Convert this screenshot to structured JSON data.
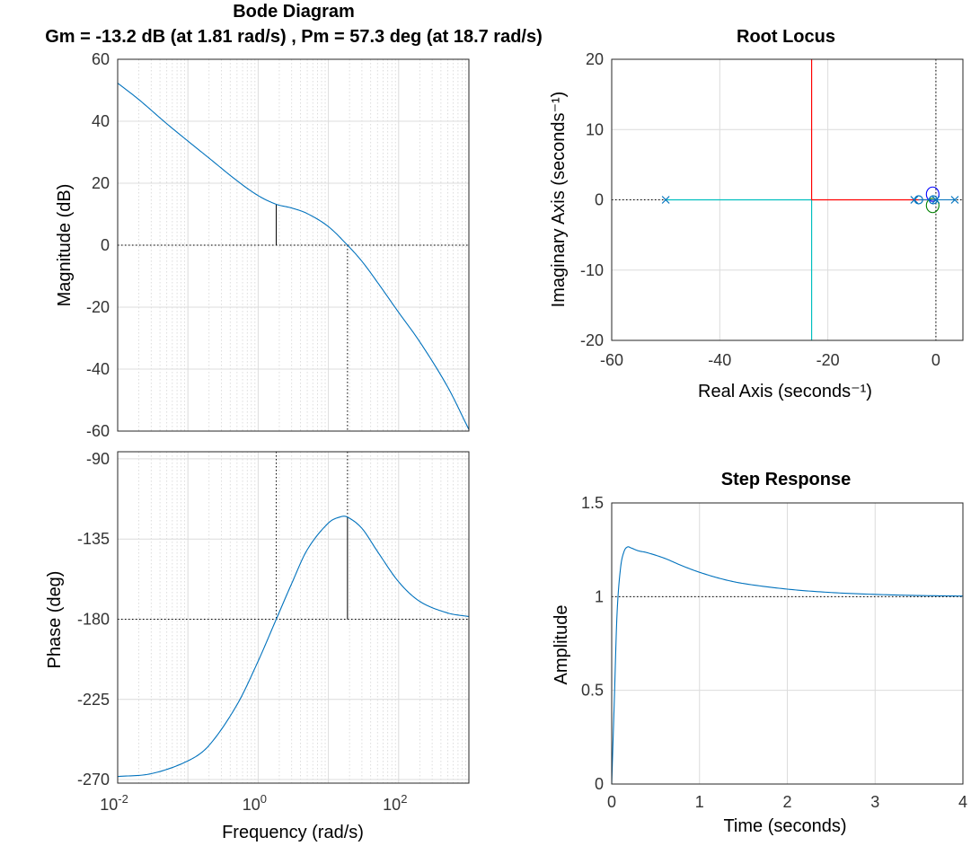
{
  "chart_data": [
    {
      "type": "line",
      "panel": "bode-magnitude",
      "title": "Bode Diagram",
      "subtitle": "Gm = -13.2 dB (at 1.81 rad/s) ,  Pm = 57.3 deg (at 18.7 rad/s)",
      "ylabel": "Magnitude (dB)",
      "xscale": "log",
      "xlim": [
        0.01,
        1000
      ],
      "ylim": [
        -60,
        60
      ],
      "yticks": [
        "60",
        "40",
        "20",
        "0",
        "-20",
        "-40",
        "-60"
      ],
      "grid": true,
      "reference_line_y": 0,
      "gain_margin": {
        "freq": 1.81,
        "db": -13.2
      },
      "series": [
        {
          "color": "#0072BD",
          "x": [
            0.01,
            0.02,
            0.05,
            0.1,
            0.2,
            0.5,
            1.0,
            1.81,
            3.0,
            5.0,
            10.0,
            18.7,
            30.0,
            50.0,
            100.0,
            200.0,
            500.0,
            1000.0
          ],
          "y": [
            52.3,
            47,
            39.2,
            33.6,
            28.1,
            20.8,
            16.0,
            13.2,
            12.0,
            10.2,
            6.0,
            0.0,
            -5.2,
            -12.0,
            -21.7,
            -31.2,
            -45.8,
            -59.5
          ]
        }
      ]
    },
    {
      "type": "line",
      "panel": "bode-phase",
      "ylabel": "Phase (deg)",
      "xlabel": "Frequency  (rad/s)",
      "xscale": "log",
      "xlim": [
        0.01,
        1000
      ],
      "ylim": [
        -272,
        -86
      ],
      "yticks": [
        "-90",
        "-135",
        "-180",
        "-225",
        "-270"
      ],
      "xticks": [
        {
          "base": "10",
          "exp": "-2"
        },
        {
          "base": "10",
          "exp": "0"
        },
        {
          "base": "10",
          "exp": "2"
        }
      ],
      "grid": true,
      "reference_line_y": -180,
      "phase_margin": {
        "freq": 18.7,
        "deg": -122.7
      },
      "series": [
        {
          "color": "#0072BD",
          "x": [
            0.01,
            0.03,
            0.1,
            0.2,
            0.5,
            1.0,
            1.81,
            3.0,
            5.0,
            10.0,
            15.0,
            18.7,
            30.0,
            50.0,
            100.0,
            200.0,
            500.0,
            1000.0
          ],
          "y": [
            -268.3,
            -266.7,
            -259.5,
            -250.8,
            -228,
            -203.5,
            -180.0,
            -160.0,
            -141.0,
            -126.0,
            -122.5,
            -122.7,
            -129.0,
            -142.0,
            -159.0,
            -170.0,
            -176.5,
            -178.5
          ]
        }
      ]
    },
    {
      "type": "line",
      "panel": "root-locus",
      "title": "Root Locus",
      "xlabel": "Real Axis (seconds⁻¹)",
      "ylabel": "Imaginary Axis (seconds⁻¹)",
      "xlim": [
        -60,
        5
      ],
      "ylim": [
        -20,
        20
      ],
      "xticks": [
        "-60",
        "-40",
        "-20",
        "0"
      ],
      "yticks": [
        "20",
        "10",
        "0",
        "-10",
        "-20"
      ],
      "grid": true,
      "poles": [
        [
          -50,
          0
        ],
        [
          -4,
          0
        ],
        [
          0,
          0
        ],
        [
          3.5,
          0
        ]
      ],
      "zeros": [
        [
          -3.2,
          0
        ],
        [
          -0.5,
          0
        ]
      ],
      "series": [
        {
          "color": "#00BFBF",
          "x": [
            -50,
            -23
          ],
          "y": [
            0,
            0
          ]
        },
        {
          "color": "#00BFBF",
          "x": [
            -23,
            -23
          ],
          "y": [
            0,
            -20
          ]
        },
        {
          "color": "#FF0000",
          "x": [
            -23,
            0
          ],
          "y": [
            0,
            0
          ]
        },
        {
          "color": "#FF0000",
          "x": [
            -23,
            -23
          ],
          "y": [
            0,
            20
          ]
        }
      ]
    },
    {
      "type": "line",
      "panel": "step-response",
      "title": "Step Response",
      "xlabel": "Time (seconds)",
      "ylabel": "Amplitude",
      "xlim": [
        0,
        4
      ],
      "ylim": [
        0,
        1.5
      ],
      "xticks": [
        "0",
        "1",
        "2",
        "3",
        "4"
      ],
      "yticks": [
        "1.5",
        "1",
        "0.5",
        "0"
      ],
      "grid": true,
      "reference_line_y": 1,
      "series": [
        {
          "color": "#0072BD",
          "x": [
            0,
            0.03,
            0.06,
            0.1,
            0.14,
            0.18,
            0.22,
            0.3,
            0.4,
            0.6,
            0.8,
            1.0,
            1.25,
            1.5,
            2.0,
            2.5,
            3.0,
            3.5,
            4.0
          ],
          "y": [
            0,
            0.45,
            0.9,
            1.15,
            1.24,
            1.265,
            1.26,
            1.245,
            1.235,
            1.205,
            1.165,
            1.13,
            1.095,
            1.07,
            1.04,
            1.022,
            1.012,
            1.006,
            1.003
          ]
        }
      ]
    }
  ]
}
